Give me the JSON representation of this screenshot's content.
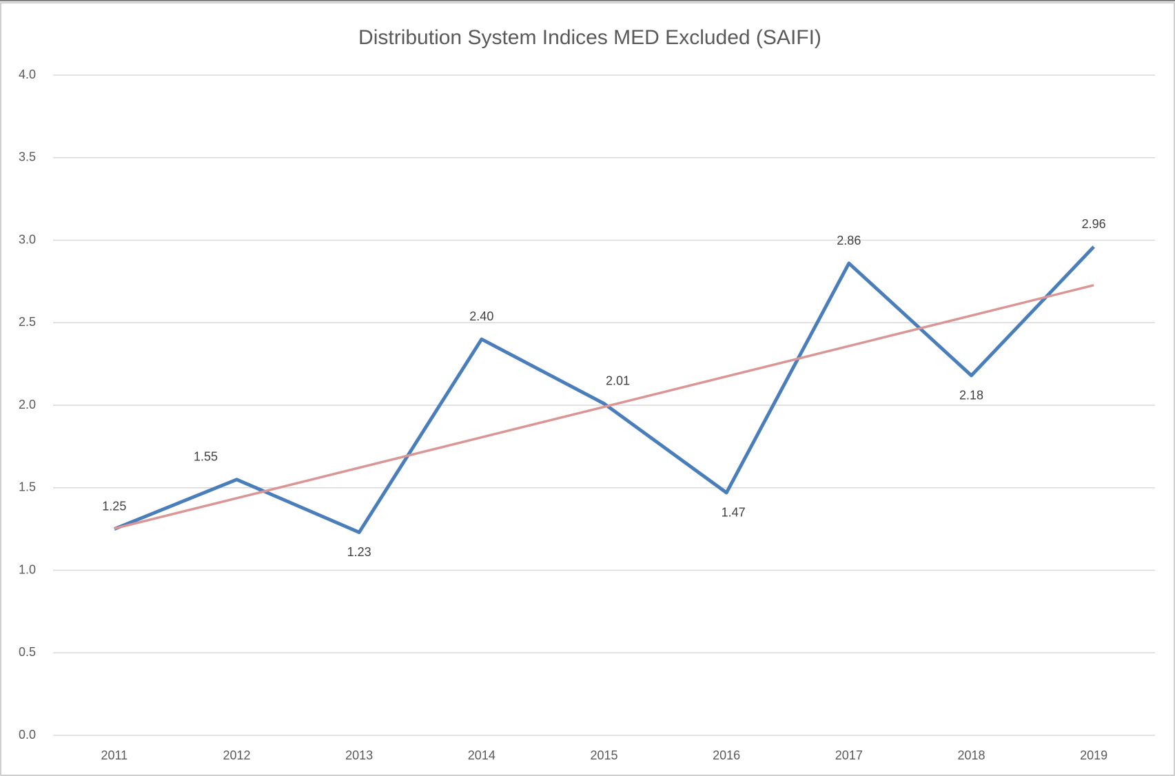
{
  "chart_data": {
    "type": "line",
    "title": "Distribution System Indices MED Excluded (SAIFI)",
    "categories": [
      "2011",
      "2012",
      "2013",
      "2014",
      "2015",
      "2016",
      "2017",
      "2018",
      "2019"
    ],
    "series": [
      {
        "name": "SAIFI",
        "color": "#4a7ebb",
        "values": [
          1.25,
          1.55,
          1.23,
          2.4,
          2.01,
          1.47,
          2.86,
          2.18,
          2.96
        ],
        "value_labels": [
          "1.25",
          "1.55",
          "1.23",
          "2.40",
          "2.01",
          "1.47",
          "2.86",
          "2.18",
          "2.96"
        ]
      }
    ],
    "trendline": {
      "type": "linear",
      "color": "#d99694"
    },
    "ylim": [
      0,
      4
    ],
    "yticks": [
      {
        "value": 0,
        "label": "0.0"
      },
      {
        "value": 0.5,
        "label": "0.5"
      },
      {
        "value": 1,
        "label": "1.0"
      },
      {
        "value": 1.5,
        "label": "1.5"
      },
      {
        "value": 2,
        "label": "2.0"
      },
      {
        "value": 2.5,
        "label": "2.5"
      },
      {
        "value": 3,
        "label": "3.0"
      },
      {
        "value": 3.5,
        "label": "3.5"
      },
      {
        "value": 4,
        "label": "4.0"
      }
    ],
    "grid": true
  }
}
